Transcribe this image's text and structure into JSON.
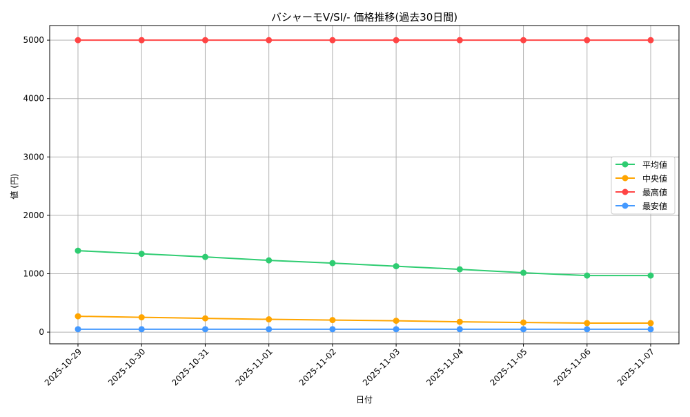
{
  "chart_data": {
    "type": "line",
    "title": "バシャーモV/SI/- 価格推移(過去30日間)",
    "xlabel": "日付",
    "ylabel": "値 (円)",
    "categories": [
      "2025-10-29",
      "2025-10-30",
      "2025-10-31",
      "2025-11-01",
      "2025-11-02",
      "2025-11-03",
      "2025-11-04",
      "2025-11-05",
      "2025-11-06",
      "2025-11-07"
    ],
    "ylim": [
      -200,
      5250
    ],
    "yticks": [
      0,
      1000,
      2000,
      3000,
      4000,
      5000
    ],
    "grid": true,
    "legend_position": "right",
    "series": [
      {
        "name": "平均値",
        "color": "#2ecc71",
        "values": [
          1395,
          1342,
          1288,
          1229,
          1182,
          1129,
          1076,
          1017,
          969,
          969
        ]
      },
      {
        "name": "中央値",
        "color": "#ffa500",
        "values": [
          272,
          254,
          236,
          219,
          207,
          195,
          177,
          165,
          154,
          154
        ]
      },
      {
        "name": "最高値",
        "color": "#ff4444",
        "values": [
          5000,
          5000,
          5000,
          5000,
          5000,
          5000,
          5000,
          5000,
          5000,
          5000
        ]
      },
      {
        "name": "最安値",
        "color": "#4499ff",
        "values": [
          50,
          50,
          50,
          50,
          50,
          50,
          50,
          50,
          50,
          50
        ]
      }
    ]
  }
}
